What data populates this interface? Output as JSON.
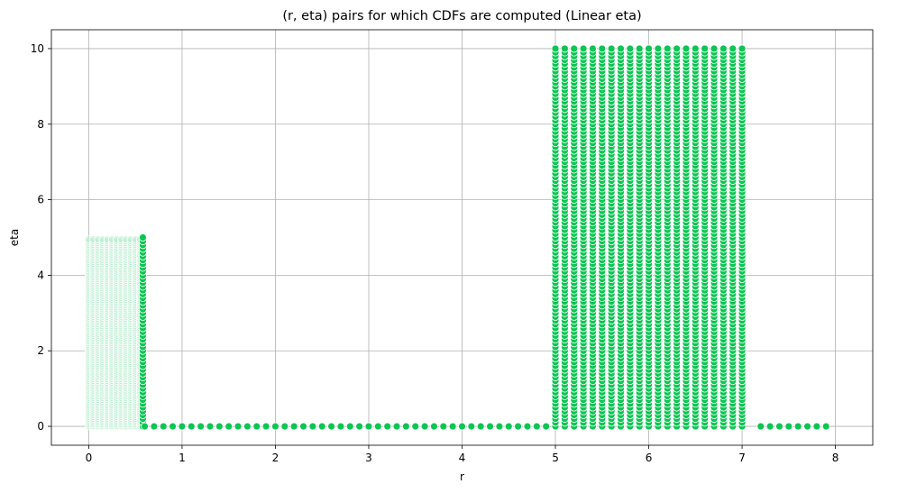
{
  "chart_data": {
    "type": "scatter",
    "title": "(r, eta) pairs for which CDFs are computed (Linear eta)",
    "xlabel": "r",
    "ylabel": "eta",
    "xlim": [
      -0.4,
      8.4
    ],
    "ylim": [
      -0.5,
      10.5
    ],
    "xticks": [
      0,
      1,
      2,
      3,
      4,
      5,
      6,
      7,
      8
    ],
    "yticks": [
      0,
      2,
      4,
      6,
      8,
      10
    ],
    "grid": true,
    "legend": "none",
    "colors": {
      "marker_fill": "#0cc652",
      "marker_edge": "#ffffff",
      "light_fill": "#b8efcf",
      "grid": "#b0b0b0"
    },
    "series": [
      {
        "region": "dense low-r block (light, semi-transparent points)",
        "r": {
          "start": 0.0,
          "end": 0.55,
          "step": 0.05
        },
        "eta": {
          "start": 0.0,
          "end": 4.95,
          "step": 0.05
        },
        "opacity": 0.3
      },
      {
        "region": "low-r boundary column",
        "r": {
          "start": 0.58,
          "end": 0.58,
          "step": 0.05
        },
        "eta": {
          "start": 0.0,
          "end": 4.95,
          "step": 0.1
        },
        "opacity": 1.0
      },
      {
        "region": "eta=0 baseline left",
        "r": {
          "start": 0.6,
          "end": 4.95,
          "step": 0.1
        },
        "eta": {
          "start": 0.0,
          "end": 0.0,
          "step": 1
        },
        "opacity": 1.0
      },
      {
        "region": "dense high-r block",
        "r": {
          "start": 5.0,
          "end": 7.0,
          "step": 0.1
        },
        "eta": {
          "start": 0.0,
          "end": 10.0,
          "step": 0.1
        },
        "opacity": 1.0
      },
      {
        "region": "eta=0 baseline right",
        "r": {
          "start": 7.2,
          "end": 7.9,
          "step": 0.1
        },
        "eta": {
          "start": 0.0,
          "end": 0.0,
          "step": 1
        },
        "opacity": 1.0
      }
    ]
  }
}
